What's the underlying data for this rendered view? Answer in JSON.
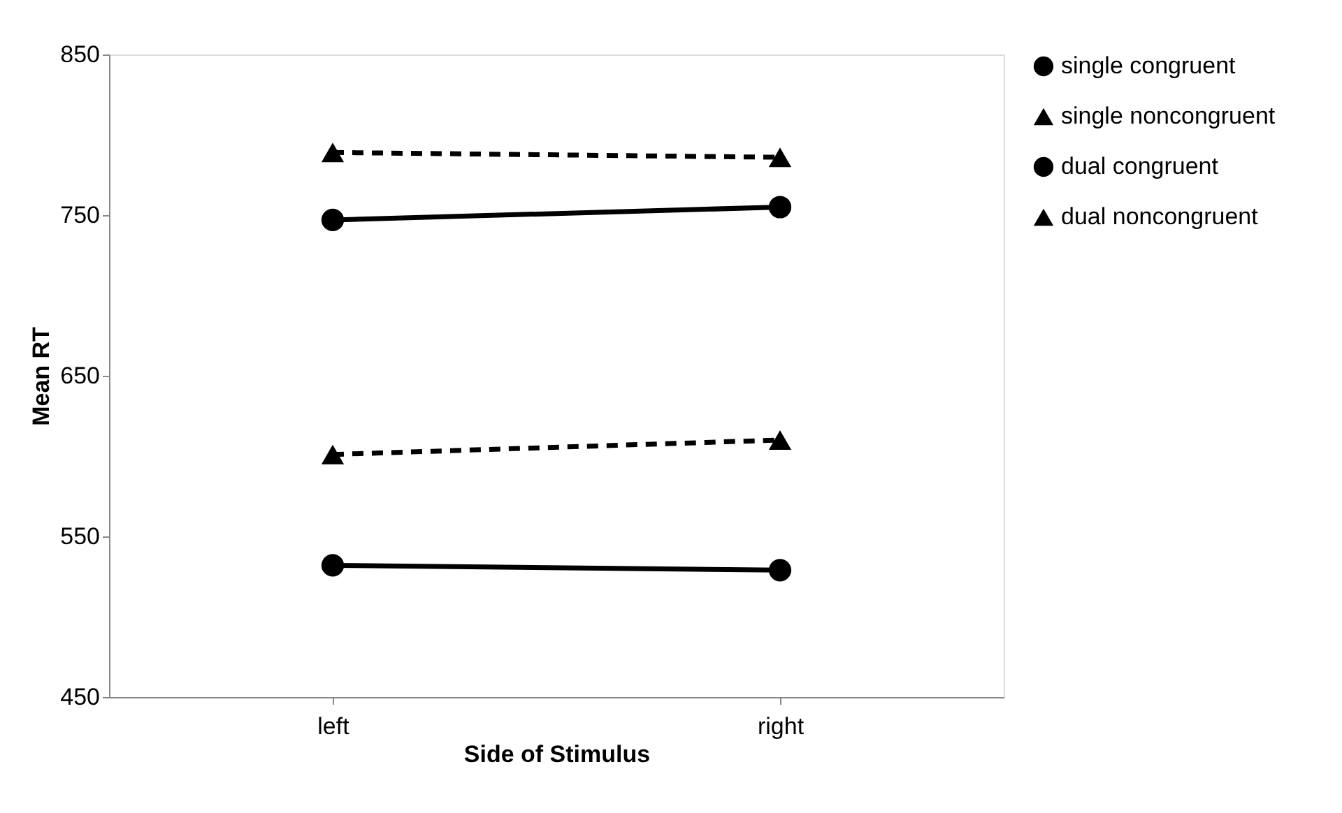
{
  "chart_data": {
    "type": "line",
    "xlabel": "Side of Stimulus",
    "ylabel": "Mean RT",
    "categories": [
      "left",
      "right"
    ],
    "series": [
      {
        "name": "single congruent",
        "color": "#000000",
        "values": [
          532,
          529
        ],
        "marker": "circle",
        "line_style": "solid"
      },
      {
        "name": "single noncongruent",
        "color": "#000000",
        "values": [
          601,
          610
        ],
        "marker": "triangle",
        "line_style": "dashed"
      },
      {
        "name": "dual congruent",
        "color": "#000000",
        "values": [
          747,
          755
        ],
        "marker": "circle",
        "line_style": "solid"
      },
      {
        "name": "dual noncongruent",
        "color": "#000000",
        "values": [
          789,
          786
        ],
        "marker": "triangle",
        "line_style": "dashed"
      }
    ],
    "ylim": [
      450,
      850
    ],
    "yticks": [
      450,
      550,
      650,
      750,
      850
    ],
    "grid": false,
    "legend": "right"
  }
}
